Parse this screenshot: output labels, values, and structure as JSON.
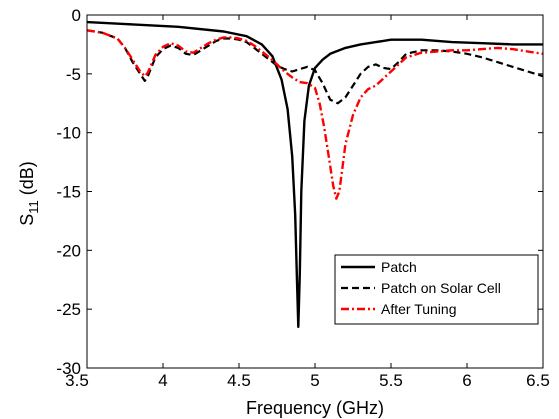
{
  "chart_data": {
    "type": "line",
    "title": "",
    "xlabel": "Frequency (GHz)",
    "ylabel": {
      "base": "S",
      "sub": "11",
      "unit": " (dB)"
    },
    "xlim": [
      3.5,
      6.5
    ],
    "ylim": [
      -30,
      0
    ],
    "xticks": [
      3.5,
      4,
      4.5,
      5,
      5.5,
      6,
      6.5
    ],
    "xtick_labels": [
      "3.5",
      "4",
      "4.5",
      "5",
      "5.5",
      "6",
      "6.5"
    ],
    "yticks": [
      0,
      -5,
      -10,
      -15,
      -20,
      -25,
      -30
    ],
    "ytick_labels": [
      "0",
      "-5",
      "-10",
      "-15",
      "-20",
      "-25",
      "-30"
    ],
    "grid": false,
    "legend_position": "bottom-right",
    "series": [
      {
        "name": "Patch",
        "color": "#000000",
        "style": "solid",
        "x": [
          3.5,
          3.8,
          4.1,
          4.4,
          4.55,
          4.65,
          4.72,
          4.78,
          4.82,
          4.85,
          4.87,
          4.88,
          4.89,
          4.9,
          4.91,
          4.93,
          4.96,
          5.0,
          5.05,
          5.1,
          5.2,
          5.3,
          5.4,
          5.5,
          5.7,
          5.9,
          6.1,
          6.3,
          6.5
        ],
        "y": [
          -0.6,
          -0.8,
          -1.0,
          -1.4,
          -1.8,
          -2.5,
          -3.5,
          -5.5,
          -8.0,
          -12.0,
          -17.0,
          -22.0,
          -26.5,
          -22.0,
          -15.0,
          -9.0,
          -6.0,
          -4.5,
          -3.8,
          -3.3,
          -2.8,
          -2.5,
          -2.3,
          -2.1,
          -2.1,
          -2.3,
          -2.4,
          -2.5,
          -2.5
        ]
      },
      {
        "name": "Patch on Solar Cell",
        "color": "#000000",
        "style": "dashed",
        "x": [
          3.5,
          3.6,
          3.7,
          3.75,
          3.8,
          3.85,
          3.88,
          3.9,
          3.95,
          4.0,
          4.05,
          4.1,
          4.15,
          4.2,
          4.25,
          4.3,
          4.35,
          4.4,
          4.45,
          4.5,
          4.55,
          4.6,
          4.65,
          4.7,
          4.75,
          4.8,
          4.85,
          4.9,
          4.95,
          5.0,
          5.05,
          5.1,
          5.15,
          5.2,
          5.25,
          5.3,
          5.35,
          5.4,
          5.45,
          5.5,
          5.55,
          5.6,
          5.7,
          5.8,
          5.9,
          6.0,
          6.1,
          6.2,
          6.3,
          6.4,
          6.5
        ],
        "y": [
          -1.3,
          -1.5,
          -2.0,
          -2.8,
          -4.0,
          -5.0,
          -5.6,
          -5.2,
          -3.6,
          -2.9,
          -2.6,
          -2.8,
          -3.3,
          -3.4,
          -3.0,
          -2.6,
          -2.2,
          -2.0,
          -2.0,
          -2.1,
          -2.3,
          -2.8,
          -3.3,
          -3.8,
          -4.3,
          -4.6,
          -4.8,
          -4.6,
          -4.4,
          -4.7,
          -5.8,
          -7.2,
          -7.5,
          -7.0,
          -6.0,
          -5.0,
          -4.4,
          -4.2,
          -4.5,
          -4.6,
          -4.0,
          -3.3,
          -3.0,
          -3.0,
          -3.1,
          -3.3,
          -3.6,
          -4.0,
          -4.4,
          -4.8,
          -5.2
        ]
      },
      {
        "name": "After Tuning",
        "color": "#ff0000",
        "style": "dashdot",
        "x": [
          3.5,
          3.6,
          3.7,
          3.75,
          3.8,
          3.85,
          3.88,
          3.9,
          3.95,
          4.0,
          4.05,
          4.1,
          4.15,
          4.2,
          4.25,
          4.3,
          4.35,
          4.4,
          4.45,
          4.5,
          4.55,
          4.6,
          4.65,
          4.7,
          4.75,
          4.8,
          4.85,
          4.9,
          4.95,
          5.0,
          5.03,
          5.06,
          5.09,
          5.12,
          5.14,
          5.16,
          5.18,
          5.2,
          5.25,
          5.3,
          5.35,
          5.4,
          5.45,
          5.5,
          5.55,
          5.6,
          5.7,
          5.8,
          5.9,
          6.0,
          6.1,
          6.2,
          6.3,
          6.4,
          6.5
        ],
        "y": [
          -1.3,
          -1.5,
          -2.0,
          -2.8,
          -3.8,
          -4.8,
          -5.2,
          -4.9,
          -3.4,
          -2.7,
          -2.4,
          -2.6,
          -3.1,
          -3.2,
          -2.8,
          -2.4,
          -2.1,
          -1.9,
          -1.9,
          -2.0,
          -2.2,
          -2.6,
          -3.1,
          -3.6,
          -4.2,
          -4.8,
          -5.3,
          -5.7,
          -5.8,
          -6.2,
          -7.5,
          -9.5,
          -12.0,
          -14.5,
          -15.6,
          -15.0,
          -13.0,
          -11.0,
          -8.5,
          -7.0,
          -6.3,
          -6.0,
          -5.4,
          -4.8,
          -4.2,
          -3.6,
          -3.2,
          -3.1,
          -3.0,
          -3.0,
          -2.9,
          -2.8,
          -2.9,
          -3.1,
          -3.3
        ]
      }
    ]
  }
}
